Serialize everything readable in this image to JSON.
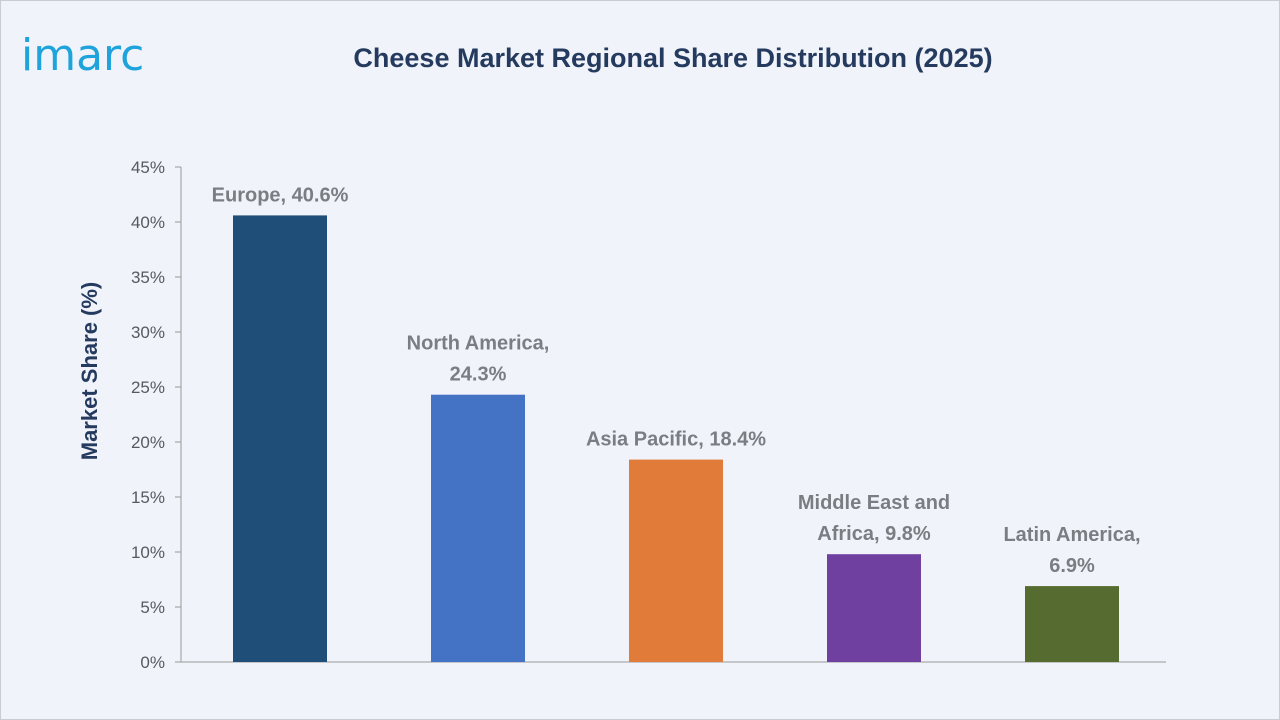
{
  "logo": "imarc",
  "colors": {
    "background": "#f0f3f9",
    "title": "#243a5e",
    "logo": "#1fa3dc",
    "axis": "#9a9a9a"
  },
  "chart_data": {
    "type": "bar",
    "title": "Cheese Market Regional Share Distribution (2025)",
    "xlabel": "",
    "ylabel": "Market Share (%)",
    "ylim": [
      0,
      45
    ],
    "ytick_step": 5,
    "ytick_format": "percent",
    "grid": false,
    "legend": "none",
    "categories": [
      "Europe",
      "North America",
      "Asia Pacific",
      "Middle East and Africa",
      "Latin America"
    ],
    "values": [
      40.6,
      24.3,
      18.4,
      9.8,
      6.9
    ],
    "bar_colors": [
      "#1f4e79",
      "#4472c4",
      "#e07b39",
      "#7040a0",
      "#556b2f"
    ],
    "data_labels": [
      [
        "Europe, 40.6%"
      ],
      [
        "North America,",
        "24.3%"
      ],
      [
        "Asia Pacific, 18.4%"
      ],
      [
        "Middle East and",
        "Africa, 9.8%"
      ],
      [
        "Latin America,",
        "6.9%"
      ]
    ]
  }
}
